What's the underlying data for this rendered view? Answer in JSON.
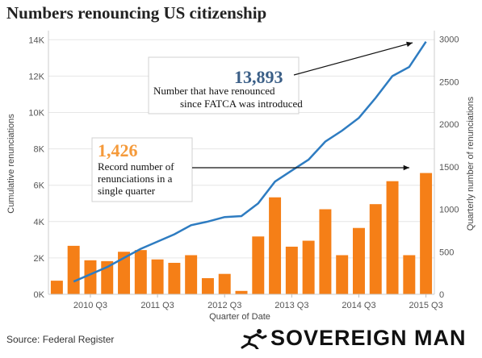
{
  "header": {
    "title": "Numbers renouncing US citizenship"
  },
  "footer": {
    "source": "Source: Federal Register",
    "brand": "SOVEREIGN MAN",
    "brand_icon": "running-man-icon"
  },
  "colors": {
    "bars": "#f57f17",
    "line": "#2e7cc1",
    "arrow": "#111111",
    "big_blue": "#3b5f87",
    "big_orange": "#f59a3a"
  },
  "chart_data": {
    "type": "bar+line",
    "title": "Numbers renouncing US citizenship",
    "xlabel": "Quarter of Date",
    "ylabel_left": "Cumulative renunciations",
    "ylabel_right": "Quarterly number of renunciations",
    "x_tick_labels": [
      "2010 Q3",
      "2011 Q3",
      "2012 Q3",
      "2013 Q3",
      "2014 Q3",
      "2015 Q3"
    ],
    "y_left_ticks": [
      "0K",
      "2K",
      "4K",
      "6K",
      "8K",
      "10K",
      "12K",
      "14K"
    ],
    "y_right_ticks": [
      "0",
      "500",
      "1000",
      "1500",
      "2000",
      "2500",
      "3000"
    ],
    "ylim_left": [
      0,
      14500
    ],
    "ylim_right": [
      0,
      3100
    ],
    "categories": [
      "2010 Q1",
      "2010 Q2",
      "2010 Q3",
      "2010 Q4",
      "2011 Q1",
      "2011 Q2",
      "2011 Q3",
      "2011 Q4",
      "2012 Q1",
      "2012 Q2",
      "2012 Q3",
      "2012 Q4",
      "2013 Q1",
      "2013 Q2",
      "2013 Q3",
      "2013 Q4",
      "2014 Q1",
      "2014 Q2",
      "2014 Q3",
      "2014 Q4",
      "2015 Q1",
      "2015 Q2",
      "2015 Q3"
    ],
    "series": [
      {
        "name": "Quarterly number of renunciations",
        "type": "bar",
        "axis": "right",
        "values": [
          160,
          570,
          400,
          390,
          500,
          520,
          410,
          370,
          460,
          190,
          240,
          40,
          680,
          1140,
          560,
          630,
          1000,
          460,
          780,
          1060,
          1330,
          460,
          1426
        ]
      },
      {
        "name": "Cumulative renunciations",
        "type": "line",
        "axis": "left",
        "values": [
          null,
          700,
          1100,
          1500,
          2000,
          2500,
          2900,
          3300,
          3800,
          4000,
          4250,
          4300,
          5000,
          6200,
          6800,
          7400,
          8400,
          9000,
          9700,
          10800,
          12000,
          12500,
          13893
        ]
      }
    ],
    "annotations": [
      {
        "value": "13,893",
        "text": [
          "Number that have renounced",
          "since FATCA was introduced"
        ]
      },
      {
        "value": "1,426",
        "text": [
          "Record number of",
          "renunciations in a",
          "single quarter"
        ]
      }
    ]
  }
}
